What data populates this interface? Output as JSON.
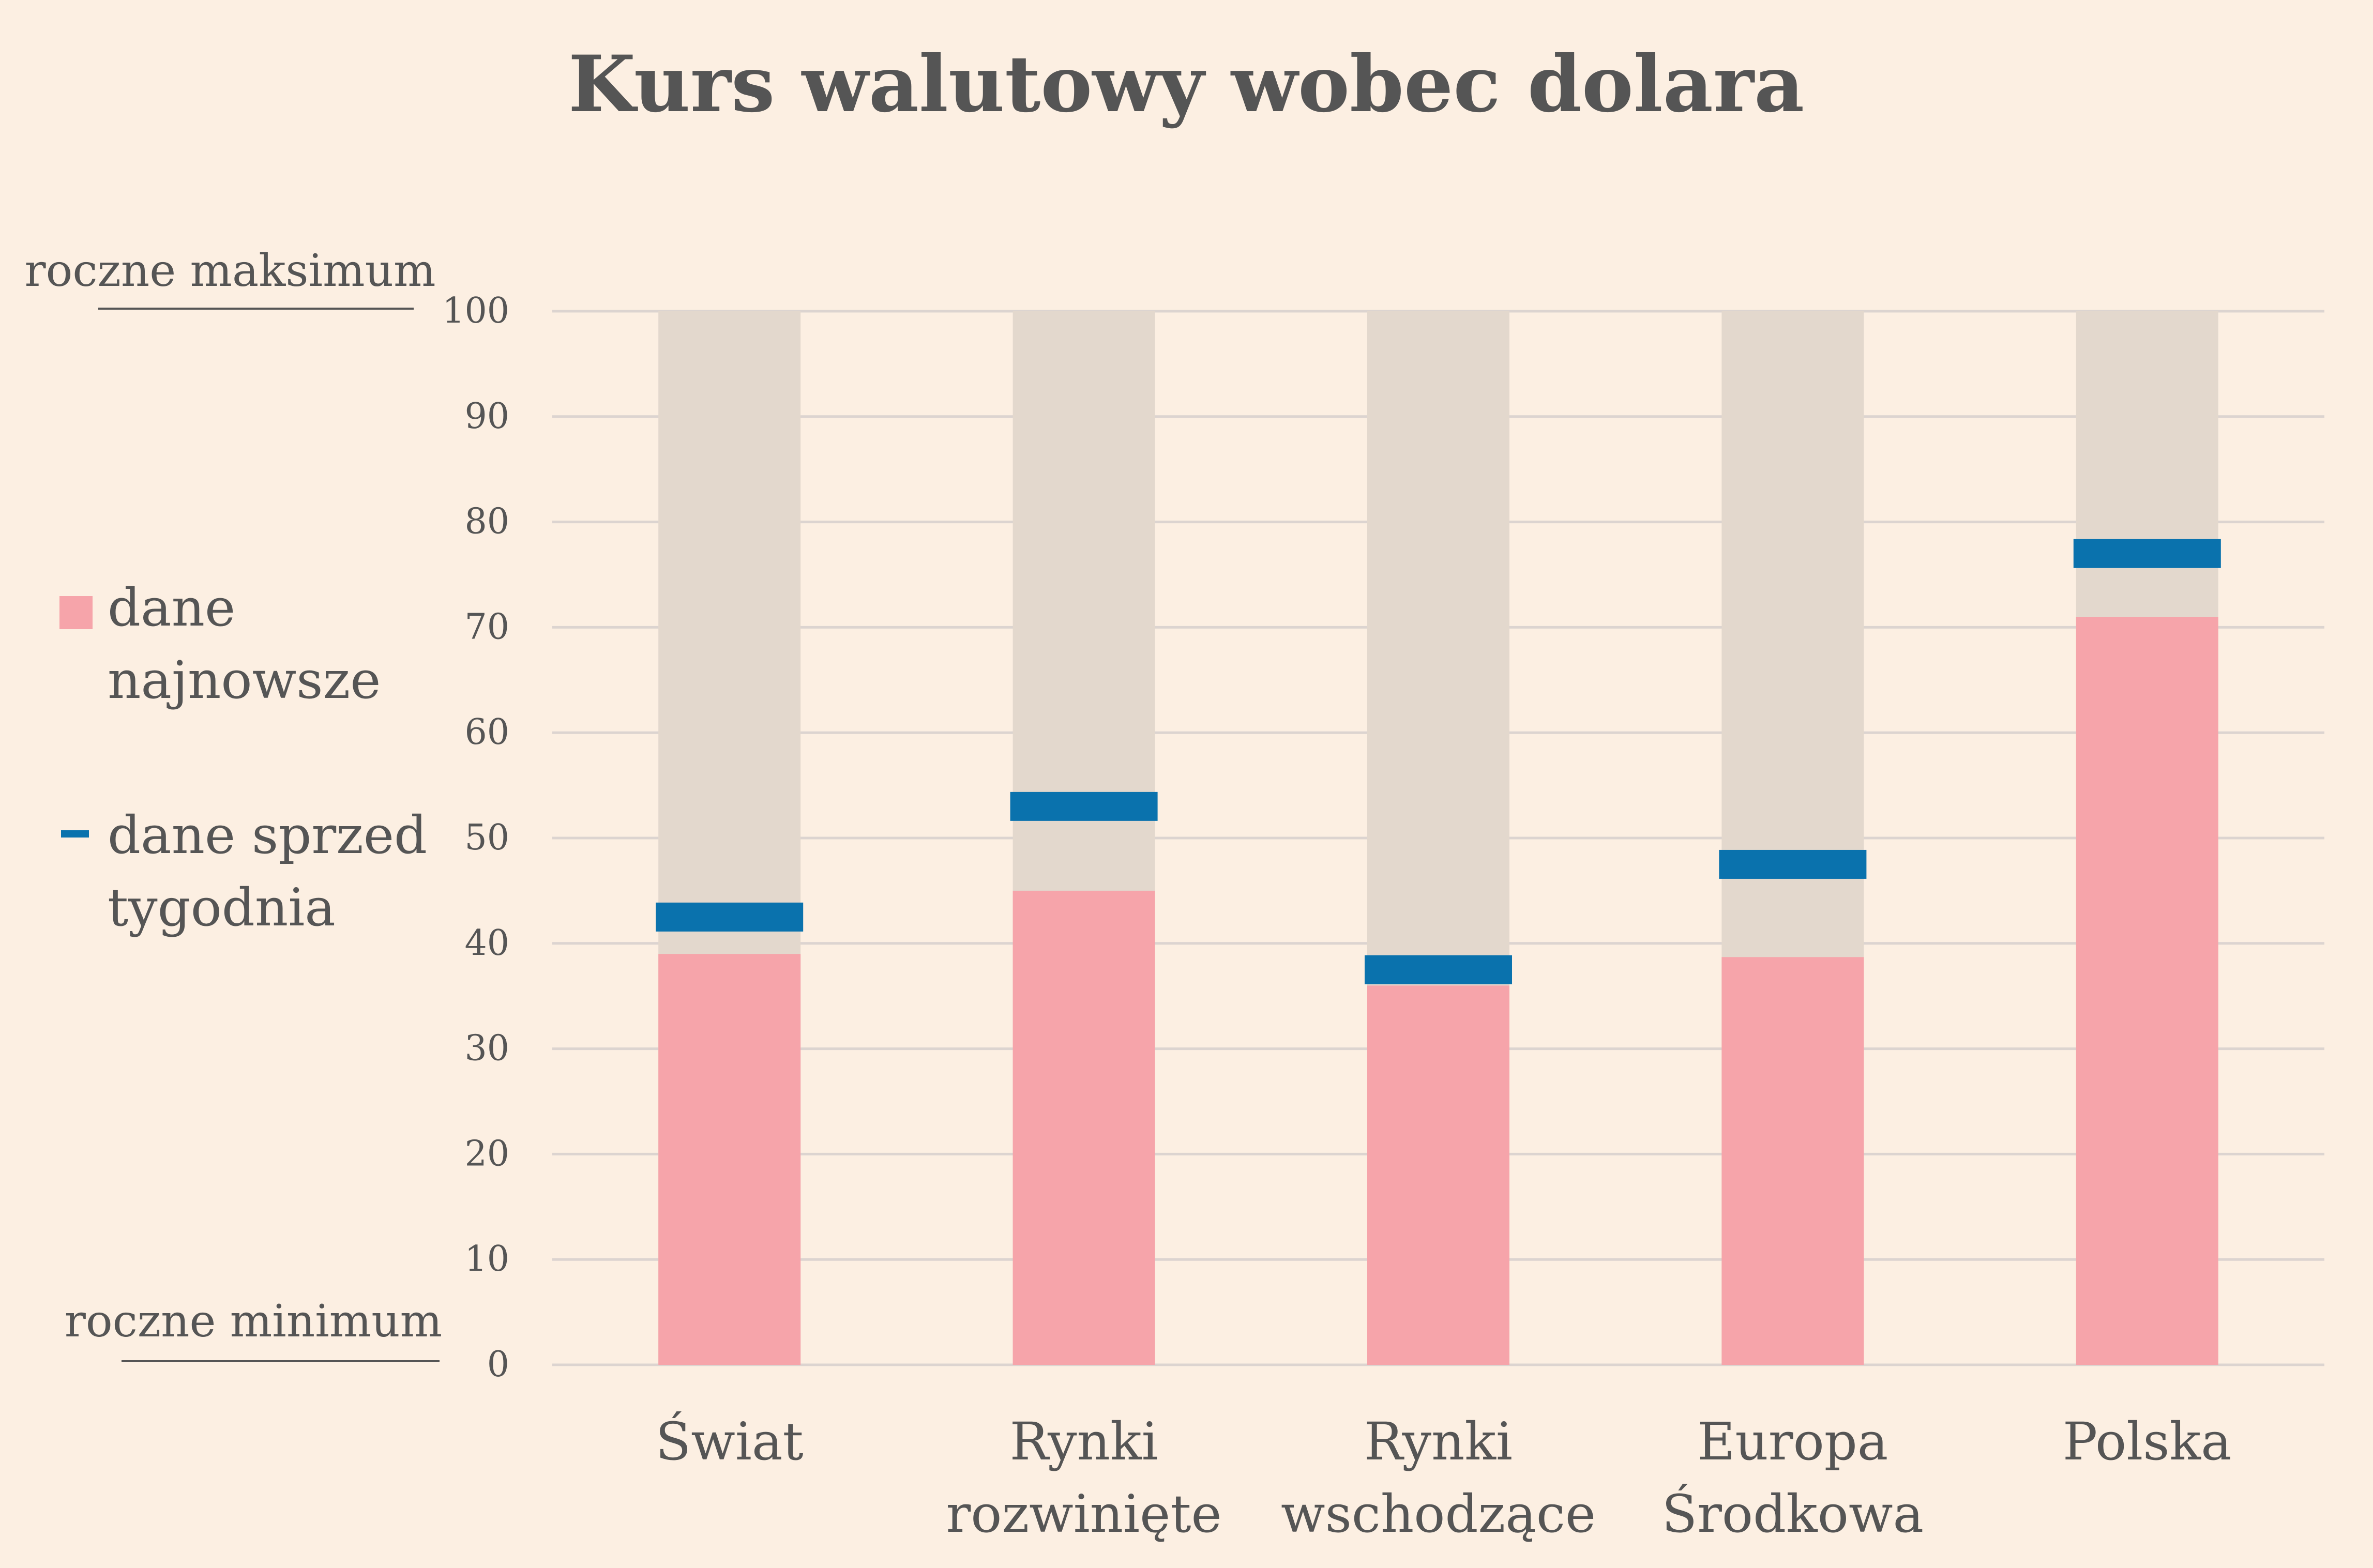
{
  "chart_data": {
    "type": "bar",
    "title": "Kurs walutowy wobec dolara",
    "categories": [
      "Świat",
      "Rynki rozwinięte",
      "Rynki wschodzące",
      "Europa Środkowa",
      "Polska"
    ],
    "category_lines": [
      [
        "Świat"
      ],
      [
        "Rynki",
        "rozwinięte"
      ],
      [
        "Rynki",
        "wschodzące"
      ],
      [
        "Europa",
        "Środkowa"
      ],
      [
        "Polska"
      ]
    ],
    "series": [
      {
        "name": "dane najnowsze",
        "values": [
          39,
          45,
          36,
          38.7,
          71
        ],
        "color": "#f6a4aa"
      },
      {
        "name": "dane sprzed tygodnia",
        "values": [
          42.5,
          53,
          37.5,
          47.5,
          77
        ],
        "color": "#0a72ad"
      }
    ],
    "range_background": {
      "max": 100,
      "color": "#e3d8cd"
    },
    "ylim": [
      0,
      100
    ],
    "yticks": [
      0,
      10,
      20,
      30,
      40,
      50,
      60,
      70,
      80,
      90,
      100
    ],
    "grid": true,
    "max_label": "roczne maksimum",
    "min_label": "roczne minimum",
    "legend": {
      "placement": "left",
      "items": [
        {
          "lines": [
            "dane",
            "najnowsze"
          ],
          "series": 0
        },
        {
          "lines": [
            "dane sprzed",
            "tygodnia"
          ],
          "series": 1
        }
      ]
    },
    "colors": {
      "background": "#fcefe2",
      "text": "#555555",
      "grid": "#dcd4d0"
    }
  }
}
